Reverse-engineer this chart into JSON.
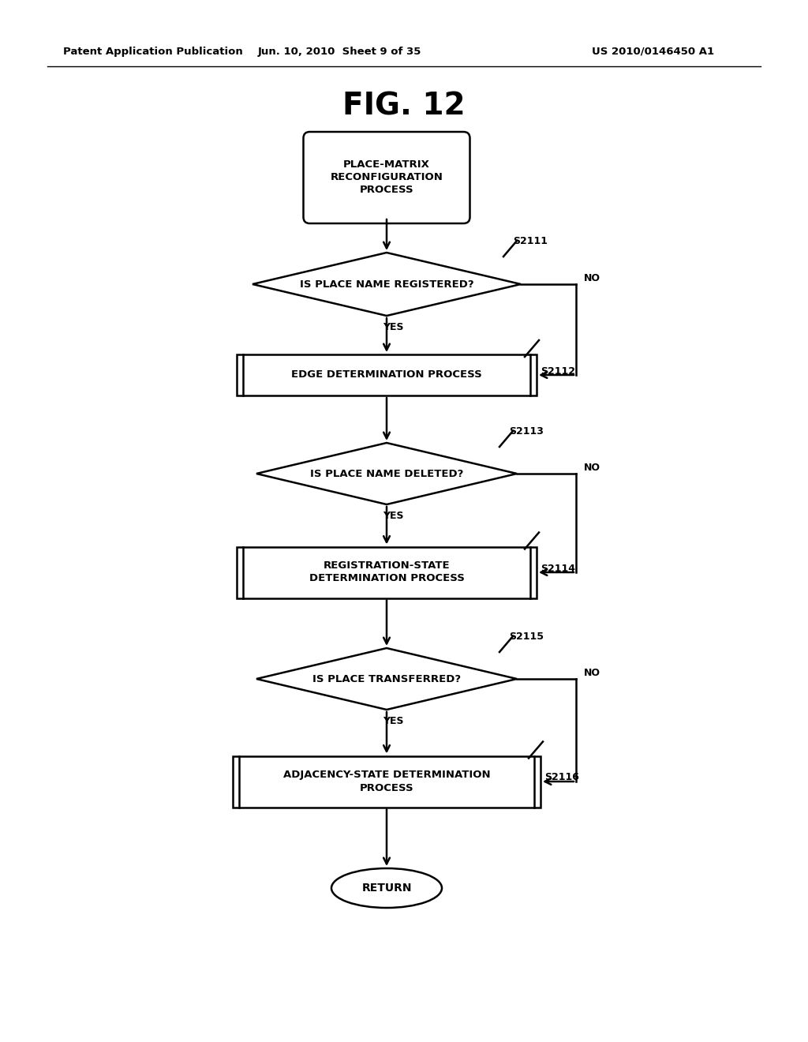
{
  "fig_title": "FIG. 12",
  "header_left": "Patent Application Publication",
  "header_center": "Jun. 10, 2010  Sheet 9 of 35",
  "header_right": "US 2010/0146450 A1",
  "background_color": "#ffffff",
  "start_text": "PLACE-MATRIX\nRECONFIGURATION\nPROCESS",
  "d1_text": "IS PLACE NAME REGISTERED?",
  "d1_label": "S2111",
  "p1_text": "EDGE DETERMINATION PROCESS",
  "p1_label": "S2112",
  "d2_text": "IS PLACE NAME DELETED?",
  "d2_label": "S2113",
  "p2_text": "REGISTRATION-STATE\nDETERMINATION PROCESS",
  "p2_label": "S2114",
  "d3_text": "IS PLACE TRANSFERRED?",
  "d3_label": "S2115",
  "p3_text": "ADJACENCY-STATE DETERMINATION\nPROCESS",
  "p3_label": "S2116",
  "end_text": "RETURN",
  "yes_label": "YES",
  "no_label": "NO"
}
